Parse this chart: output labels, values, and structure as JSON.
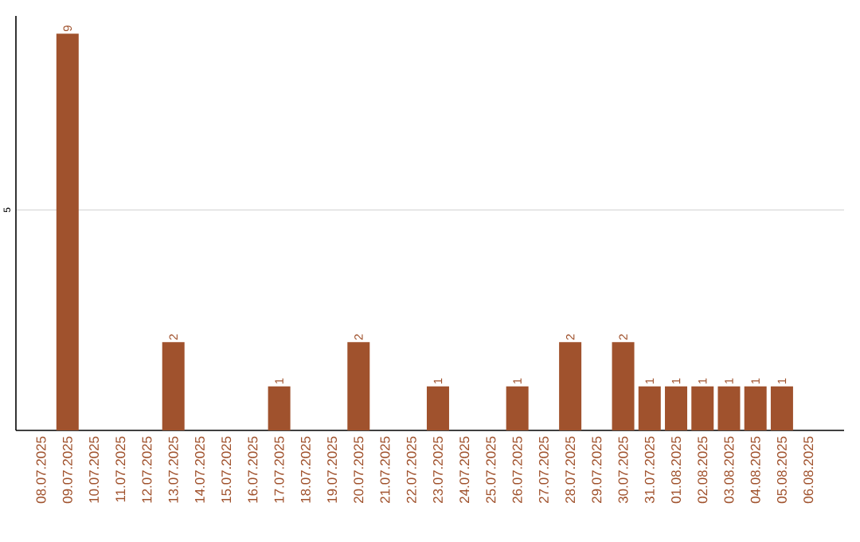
{
  "chart_data": {
    "type": "bar",
    "categories": [
      "08.07.2025",
      "09.07.2025",
      "10.07.2025",
      "11.07.2025",
      "12.07.2025",
      "13.07.2025",
      "14.07.2025",
      "15.07.2025",
      "16.07.2025",
      "17.07.2025",
      "18.07.2025",
      "19.07.2025",
      "20.07.2025",
      "21.07.2025",
      "22.07.2025",
      "23.07.2025",
      "24.07.2025",
      "25.07.2025",
      "26.07.2025",
      "27.07.2025",
      "28.07.2025",
      "29.07.2025",
      "30.07.2025",
      "31.07.2025",
      "01.08.2025",
      "02.08.2025",
      "03.08.2025",
      "04.08.2025",
      "05.08.2025",
      "06.08.2025"
    ],
    "values": [
      0,
      9,
      0,
      0,
      0,
      2,
      0,
      0,
      0,
      1,
      0,
      0,
      2,
      0,
      0,
      1,
      0,
      0,
      1,
      0,
      2,
      0,
      2,
      1,
      1,
      1,
      1,
      1,
      1,
      0
    ],
    "value_labels": [
      null,
      "9",
      null,
      null,
      null,
      "2",
      null,
      null,
      null,
      "1",
      null,
      null,
      "2",
      null,
      null,
      "1",
      null,
      null,
      "1",
      null,
      "2",
      null,
      "2",
      "1",
      "1",
      "1",
      "1",
      "1",
      "1",
      null
    ],
    "color": "#a0522d",
    "ylim": [
      0,
      9.4
    ],
    "yticks": [
      5
    ],
    "grid": "y"
  }
}
